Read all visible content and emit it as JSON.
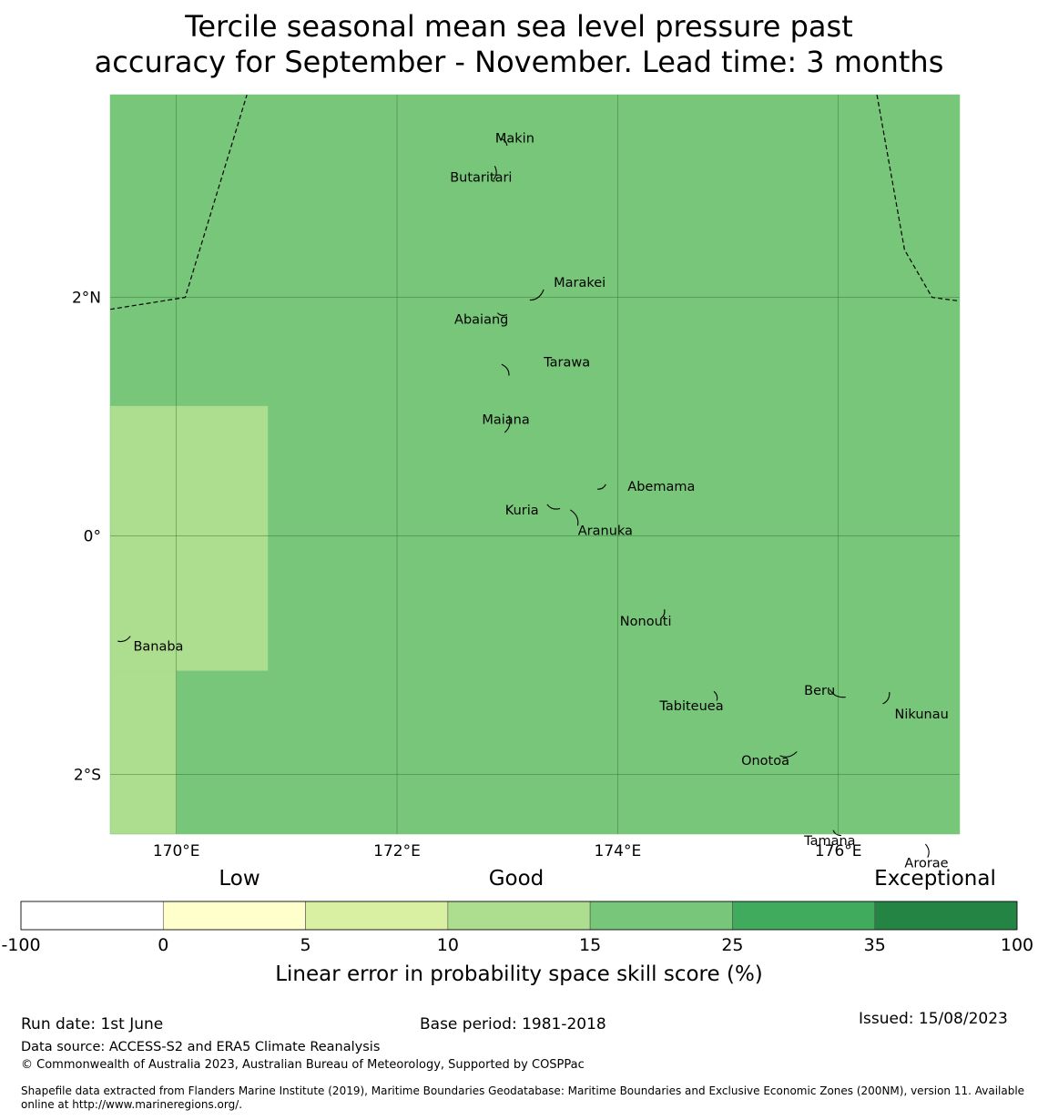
{
  "title": {
    "line1": "Tercile seasonal mean sea level pressure past",
    "line2": "accuracy for September - November. Lead time: 3 months"
  },
  "map": {
    "extent": {
      "lon_min": 169.4,
      "lon_max": 177.1,
      "lat_min": -2.5,
      "lat_max": 3.7
    },
    "background_skill_range": "15-25",
    "colors": {
      "range_15_25": "#78c679",
      "range_10_15": "#addd8e",
      "land": "#000000",
      "gridline": "#2d6a2d"
    },
    "skill_patches": [
      {
        "lon_min": 169.4,
        "lon_max": 170.83,
        "lat_min": -1.13,
        "lat_max": 1.09,
        "range": "10-15"
      },
      {
        "lon_min": 169.4,
        "lon_max": 170.0,
        "lat_min": -2.5,
        "lat_max": -1.13,
        "range": "10-15"
      }
    ],
    "lon_ticks": [
      {
        "value": 170,
        "label": "170°E"
      },
      {
        "value": 172,
        "label": "172°E"
      },
      {
        "value": 174,
        "label": "174°E"
      },
      {
        "value": 176,
        "label": "176°E"
      }
    ],
    "lat_ticks": [
      {
        "value": 2,
        "label": "2°N"
      },
      {
        "value": 0,
        "label": "0°"
      },
      {
        "value": -2,
        "label": "2°S"
      }
    ],
    "eez_boundaries": [
      [
        [
          169.4,
          1.9
        ],
        [
          170.08,
          2.0
        ],
        [
          170.64,
          3.7
        ]
      ],
      [
        [
          176.35,
          3.7
        ],
        [
          176.6,
          2.4
        ],
        [
          176.85,
          2.0
        ],
        [
          177.1,
          1.97
        ]
      ]
    ],
    "islands": [
      {
        "name": "Makin",
        "lon": 172.98,
        "lat": 3.31,
        "label_lon": 172.89,
        "label_lat": 3.33
      },
      {
        "name": "Butaritari",
        "lon": 172.9,
        "lat": 3.04,
        "label_lon": 172.48,
        "label_lat": 3.0
      },
      {
        "name": "Marakei",
        "lon": 173.28,
        "lat": 2.0,
        "label_lon": 173.42,
        "label_lat": 2.12
      },
      {
        "name": "Abaiang",
        "lon": 172.95,
        "lat": 1.85,
        "label_lon": 172.52,
        "label_lat": 1.81
      },
      {
        "name": "Tarawa",
        "lon": 173.0,
        "lat": 1.4,
        "label_lon": 173.33,
        "label_lat": 1.45
      },
      {
        "name": "Maiana",
        "lon": 173.02,
        "lat": 0.93,
        "label_lon": 172.77,
        "label_lat": 0.97
      },
      {
        "name": "Abemama",
        "lon": 173.86,
        "lat": 0.4,
        "label_lon": 174.09,
        "label_lat": 0.41
      },
      {
        "name": "Kuria",
        "lon": 173.41,
        "lat": 0.23,
        "label_lon": 172.98,
        "label_lat": 0.21
      },
      {
        "name": "Aranuka",
        "lon": 173.63,
        "lat": 0.16,
        "label_lon": 173.64,
        "label_lat": 0.04
      },
      {
        "name": "Nonouti",
        "lon": 174.42,
        "lat": -0.66,
        "label_lon": 174.02,
        "label_lat": -0.72
      },
      {
        "name": "Banaba",
        "lon": 169.53,
        "lat": -0.88,
        "label_lon": 169.61,
        "label_lat": -0.93
      },
      {
        "name": "Beru",
        "lon": 175.98,
        "lat": -1.34,
        "label_lon": 175.69,
        "label_lat": -1.3
      },
      {
        "name": "Tabiteuea",
        "lon": 174.9,
        "lat": -1.34,
        "label_lon": 174.38,
        "label_lat": -1.43
      },
      {
        "name": "Nikunau",
        "lon": 176.45,
        "lat": -1.37,
        "label_lon": 176.51,
        "label_lat": -1.5
      },
      {
        "name": "Onotoa",
        "lon": 175.55,
        "lat": -1.85,
        "label_lon": 175.12,
        "label_lat": -1.89
      },
      {
        "name": "Tamana",
        "lon": 175.98,
        "lat": -2.5,
        "label_lon": 175.69,
        "label_lat": -2.56
      },
      {
        "name": "Arorae",
        "lon": 176.82,
        "lat": -2.64,
        "label_lon": 176.6,
        "label_lat": -2.75
      }
    ]
  },
  "colorbar": {
    "category_labels": [
      "Low",
      "Good",
      "Exceptional"
    ],
    "tick_labels": [
      "-100",
      "0",
      "5",
      "10",
      "15",
      "25",
      "35",
      "100"
    ],
    "colors": [
      "#ffffff",
      "#ffffcc",
      "#d9f0a3",
      "#addd8e",
      "#78c679",
      "#41ab5d",
      "#238443"
    ],
    "label": "Linear error in probability space skill score (%)"
  },
  "footer": {
    "run_date": "Run date: 1st June",
    "base_period": "Base period: 1981-2018",
    "issued": "Issued: 15/08/2023",
    "data_source": "Data source: ACCESS-S2 and ERA5 Climate Reanalysis",
    "copyright": "© Commonwealth of Australia 2023, Australian Bureau of Meteorology, Supported by COSPPac",
    "shapefile": "Shapefile data extracted from Flanders Marine Institute (2019), Maritime Boundaries Geodatabase: Maritime Boundaries and Exclusive Economic Zones (200NM), version 11. Available online at http://www.marineregions.org/."
  }
}
